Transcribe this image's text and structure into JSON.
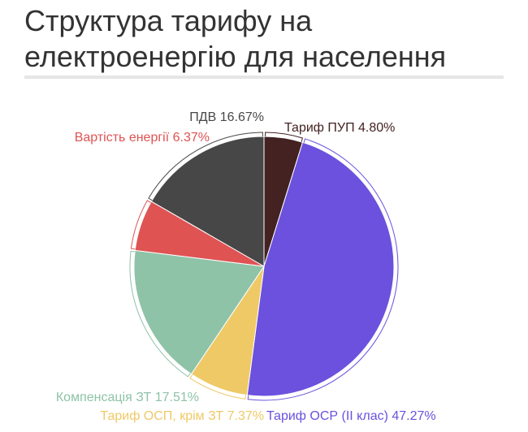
{
  "title_line1": "Структура тарифу на",
  "title_line2": "електроенергію для населення",
  "chart_data": {
    "type": "pie",
    "slices": [
      {
        "label": "Тариф ПУП 4.80%",
        "value": 4.8,
        "color": "#442222"
      },
      {
        "label": "Тариф ОСР (ІІ клас) 47.27%",
        "value": 47.27,
        "color": "#6b51dd"
      },
      {
        "label": "Тариф ОСП, крім ЗТ 7.37%",
        "value": 7.37,
        "color": "#eec966"
      },
      {
        "label": "Компенсація ЗТ 17.51%",
        "value": 17.51,
        "color": "#8ec3a7"
      },
      {
        "label": "Вартість енергії 6.37%",
        "value": 6.37,
        "color": "#df5353"
      },
      {
        "label": "ПДВ 16.67%",
        "value": 16.67,
        "color": "#474747"
      }
    ]
  }
}
